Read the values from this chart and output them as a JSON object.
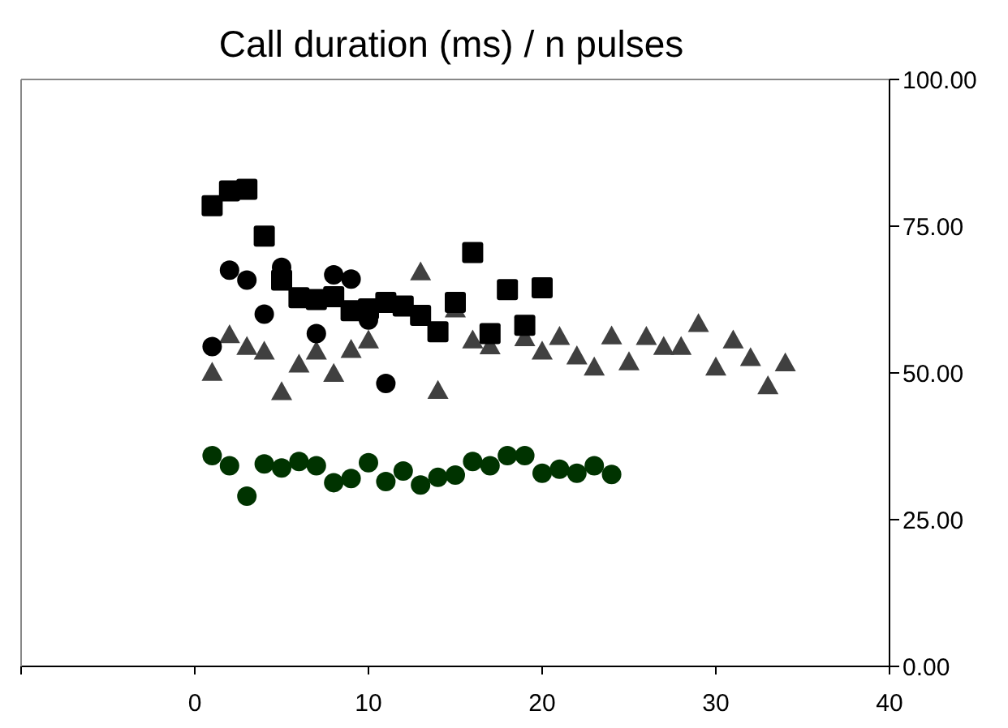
{
  "chart_data": {
    "type": "scatter",
    "title": "Call duration (ms) / n pulses",
    "xlim": [
      -10,
      40
    ],
    "xticks": [
      {
        "value": -10,
        "label": null
      },
      0,
      10,
      20,
      30,
      40
    ],
    "ylim": [
      0,
      100
    ],
    "yticks": [
      {
        "value": 0,
        "label": "0.00"
      },
      {
        "value": 25,
        "label": "25.00"
      },
      {
        "value": 50,
        "label": "50.00"
      },
      {
        "value": 75,
        "label": "75.00"
      },
      {
        "value": 100,
        "label": "100.00"
      }
    ],
    "legend": false,
    "series": [
      {
        "color": "#404040",
        "marker": "triangle",
        "x": [
          1,
          2,
          3,
          4,
          5,
          6,
          7,
          8,
          9,
          10,
          11,
          12,
          13,
          14,
          15,
          16,
          17,
          18,
          19,
          20,
          21,
          22,
          23,
          24,
          25,
          26,
          27,
          28,
          29,
          30,
          31,
          32,
          33,
          34
        ],
        "values": [
          50.1,
          56.5,
          54.5,
          53.7,
          46.8,
          51.5,
          53.7,
          49.9,
          54,
          55.6,
          null,
          null,
          67.2,
          47,
          60.9,
          55.6,
          54.6,
          null,
          56,
          53.7,
          56.2,
          52.9,
          51,
          56.3,
          51.9,
          56.2,
          54.5,
          54.5,
          58.4,
          51,
          55.6,
          52.6,
          47.8,
          51.7
        ]
      },
      {
        "color": "#000000",
        "marker": "circle",
        "x": [
          1,
          2,
          3,
          4,
          5,
          6,
          7,
          8,
          9,
          10,
          11
        ],
        "values": [
          54.5,
          67.5,
          65.8,
          60,
          68,
          null,
          56.7,
          66.7,
          66,
          59,
          48.2
        ]
      },
      {
        "color": "#000000",
        "marker": "square",
        "x": [
          1,
          2,
          3,
          4,
          5,
          6,
          7,
          8,
          9,
          10,
          11,
          12,
          13,
          14,
          15,
          16,
          17,
          18,
          19,
          20
        ],
        "values": [
          78.5,
          81,
          81.3,
          73.3,
          65.8,
          62.8,
          62.5,
          63,
          60.6,
          60.9,
          62,
          61.4,
          59.8,
          57,
          62,
          70.5,
          56.7,
          64.2,
          58.1,
          64.5
        ]
      },
      {
        "color": "#003300",
        "marker": "circle",
        "x": [
          1,
          2,
          3,
          4,
          5,
          6,
          7,
          8,
          9,
          10,
          11,
          12,
          13,
          14,
          15,
          16,
          17,
          18,
          19,
          20,
          21,
          22,
          23,
          24
        ],
        "values": [
          35.9,
          34.2,
          29,
          34.5,
          33.8,
          34.9,
          34.2,
          31.3,
          32,
          34.7,
          31.5,
          33.3,
          30.9,
          32.2,
          32.6,
          34.9,
          34.2,
          35.9,
          35.9,
          32.9,
          33.6,
          32.9,
          34.2,
          32.7
        ]
      }
    ]
  }
}
